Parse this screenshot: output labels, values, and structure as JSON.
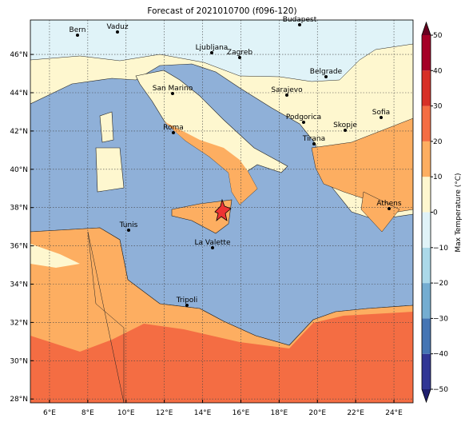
{
  "title": "Forecast of 2021010700 (f096-120)",
  "map": {
    "lon_ticks": [
      {
        "value": 6,
        "label": "6°E"
      },
      {
        "value": 8,
        "label": "8°E"
      },
      {
        "value": 10,
        "label": "10°E"
      },
      {
        "value": 12,
        "label": "12°E"
      },
      {
        "value": 14,
        "label": "14°E"
      },
      {
        "value": 16,
        "label": "16°E"
      },
      {
        "value": 18,
        "label": "18°E"
      },
      {
        "value": 20,
        "label": "20°E"
      },
      {
        "value": 22,
        "label": "22°E"
      },
      {
        "value": 24,
        "label": "24°E"
      }
    ],
    "lat_ticks": [
      {
        "value": 28,
        "label": "28°N"
      },
      {
        "value": 30,
        "label": "30°N"
      },
      {
        "value": 32,
        "label": "32°N"
      },
      {
        "value": 34,
        "label": "34°N"
      },
      {
        "value": 36,
        "label": "36°N"
      },
      {
        "value": 38,
        "label": "38°N"
      },
      {
        "value": 40,
        "label": "40°N"
      },
      {
        "value": 42,
        "label": "42°N"
      },
      {
        "value": 44,
        "label": "44°N"
      },
      {
        "value": 46,
        "label": "46°N"
      }
    ],
    "cities": [
      "Bern",
      "Vaduz",
      "Budapest",
      "Ljubljana",
      "Zagreb",
      "Belgrade",
      "Sarajevo",
      "San Marino",
      "Sofia",
      "Podgorica",
      "Skopje",
      "Roma",
      "Tirana",
      "Athens",
      "Tunis",
      "La Valette",
      "Tripoli"
    ]
  },
  "colorbar": {
    "label": "Max Temperature (°C)",
    "ticks": [
      {
        "value": -50,
        "label": "−50"
      },
      {
        "value": -40,
        "label": "−40"
      },
      {
        "value": -30,
        "label": "−30"
      },
      {
        "value": -20,
        "label": "−20"
      },
      {
        "value": -10,
        "label": "−10"
      },
      {
        "value": 0,
        "label": "0"
      },
      {
        "value": 10,
        "label": "10"
      },
      {
        "value": 20,
        "label": "20"
      },
      {
        "value": 30,
        "label": "30"
      },
      {
        "value": 40,
        "label": "40"
      },
      {
        "value": 50,
        "label": "50"
      }
    ],
    "colors": [
      "#313695",
      "#4575b4",
      "#74add1",
      "#abd9e9",
      "#e0f3f8",
      "#fef7cf",
      "#fdae61",
      "#f46d43",
      "#d73027",
      "#a50026"
    ],
    "under": "#1f1f6e",
    "over": "#67001f"
  }
}
